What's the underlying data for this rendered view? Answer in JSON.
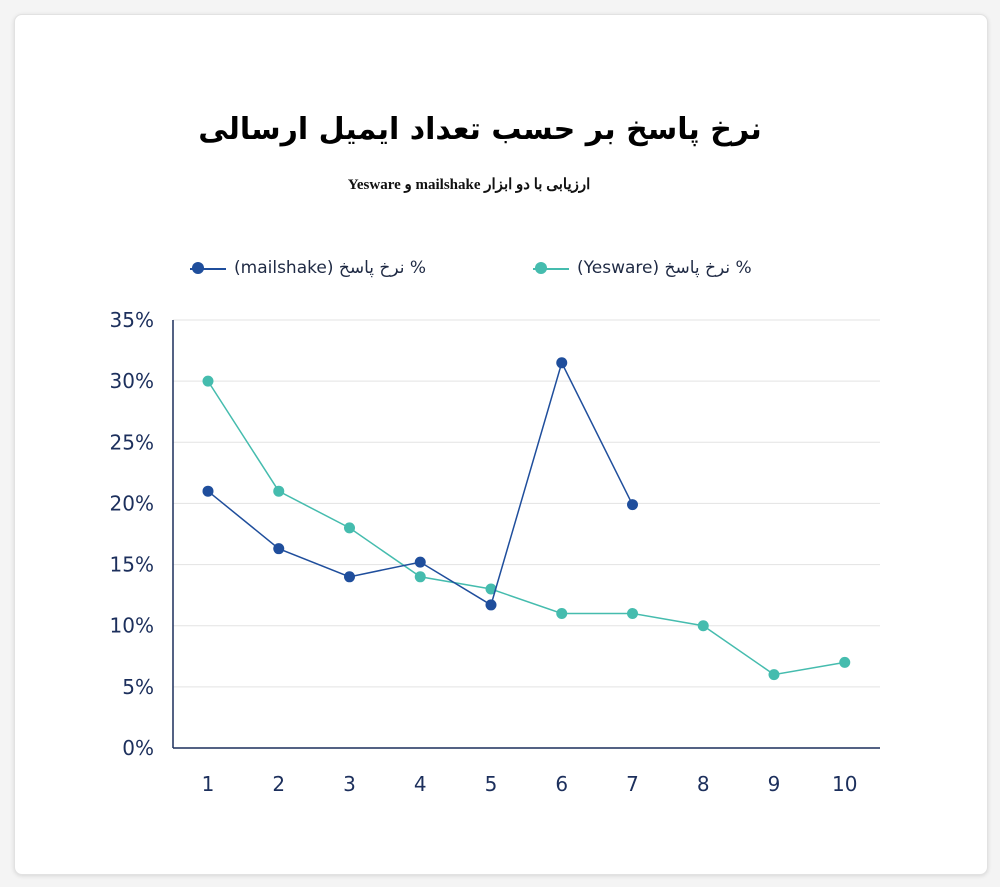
{
  "chart_data": {
    "type": "line",
    "title": "نرخ پاسخ بر حسب تعداد ایمیل ارسالی",
    "subtitle": "ارزیابی با دو ابزار  mailshake و Yesware",
    "x": [
      1,
      2,
      3,
      4,
      5,
      6,
      7,
      8,
      9,
      10
    ],
    "x_tick_labels": [
      "1",
      "2",
      "3",
      "4",
      "5",
      "6",
      "7",
      "8",
      "9",
      "10"
    ],
    "y_tick_labels": [
      "0%",
      "5%",
      "10%",
      "15%",
      "20%",
      "25%",
      "30%",
      "35%"
    ],
    "y_ticks": [
      0,
      5,
      10,
      15,
      20,
      25,
      30,
      35
    ],
    "ylim": [
      0,
      35
    ],
    "grid": true,
    "legend_position": "top",
    "series": [
      {
        "name": "% نرخ پاسخ (mailshake)",
        "legend_label": "(mailshake) نرخ پاسخ %",
        "color": "#1f4e9c",
        "x": [
          1,
          2,
          3,
          4,
          5,
          6,
          7
        ],
        "values": [
          21,
          16.3,
          14,
          15.2,
          11.7,
          31.5,
          19.9
        ]
      },
      {
        "name": "% نرخ پاسخ (Yesware)",
        "legend_label": "(Yesware) نرخ پاسخ %",
        "color": "#45bcae",
        "x": [
          1,
          2,
          3,
          4,
          5,
          6,
          7,
          8,
          9,
          10
        ],
        "values": [
          30,
          21,
          18,
          14,
          13,
          11,
          11,
          10,
          6,
          7
        ]
      }
    ]
  },
  "colors": {
    "axis": "#1c2f5c",
    "grid": "#e3e3e3"
  }
}
